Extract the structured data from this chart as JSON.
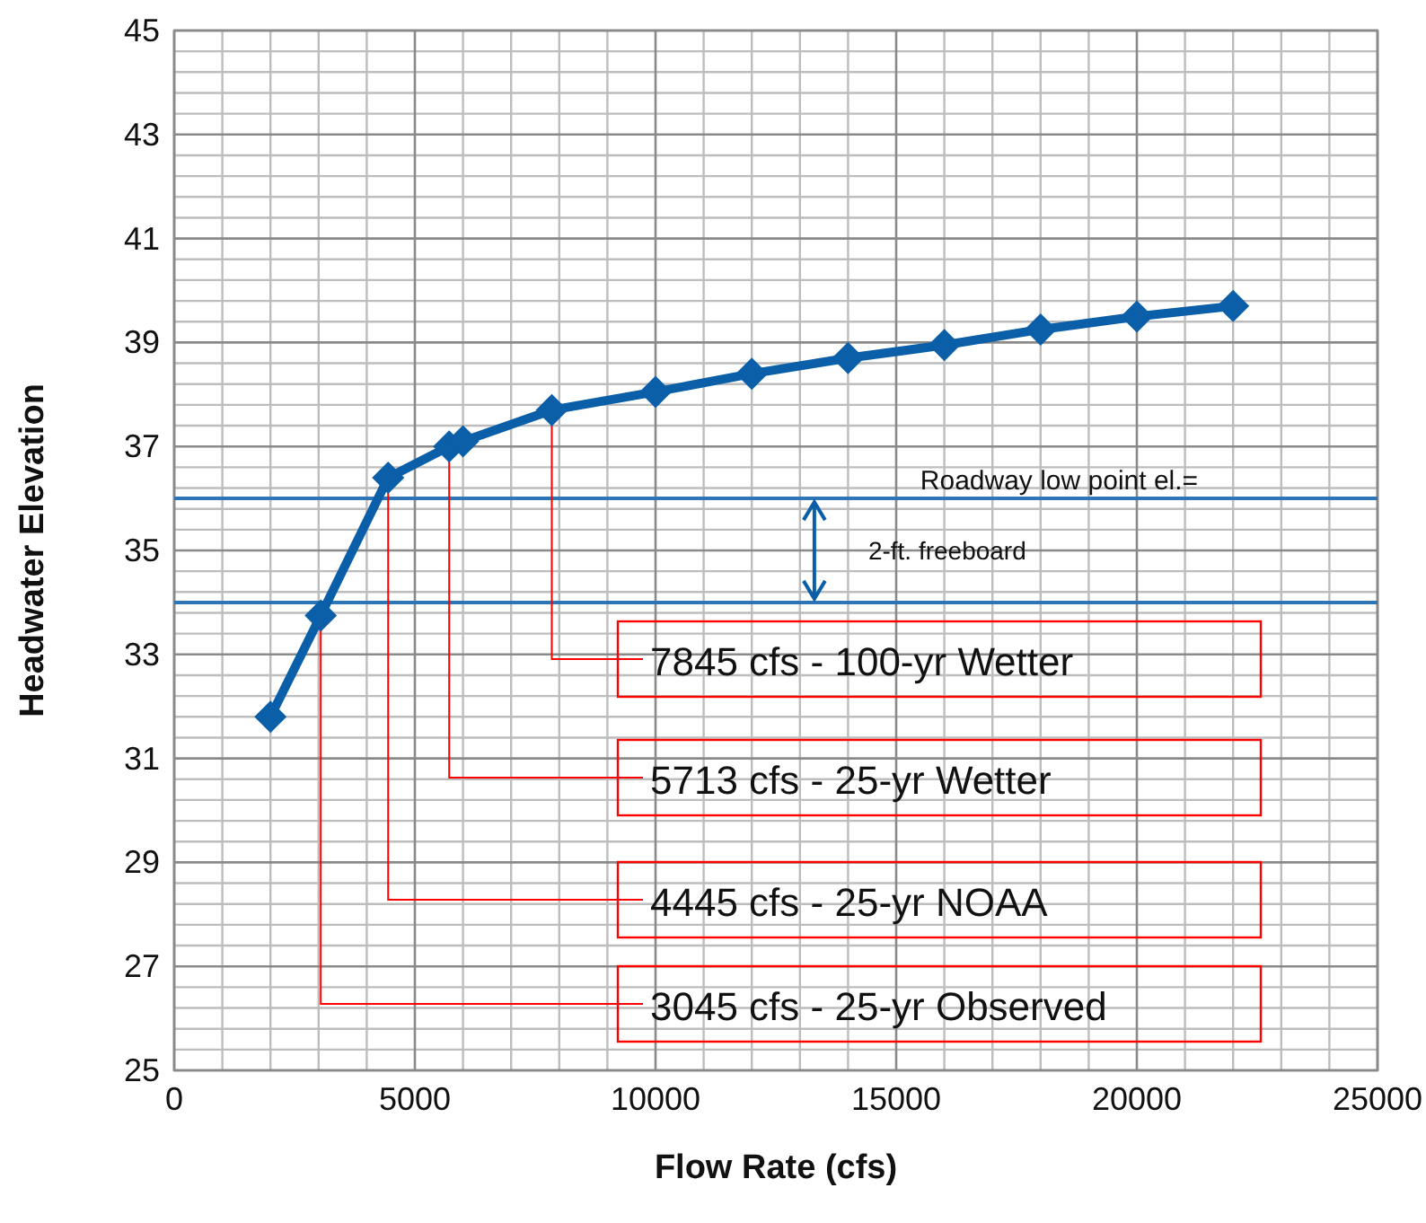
{
  "chart_data": {
    "type": "line",
    "xlabel": "Flow Rate (cfs)",
    "ylabel": "Headwater Elevation",
    "x": [
      2000,
      3045,
      4445,
      5713,
      6000,
      7845,
      10000,
      12000,
      14000,
      16000,
      18000,
      20000,
      22000
    ],
    "series": [
      {
        "color": "#0a5fa8",
        "values": [
          31.8,
          33.75,
          36.4,
          37.0,
          37.1,
          37.7,
          38.05,
          38.4,
          38.7,
          38.95,
          39.25,
          39.5,
          39.7
        ]
      }
    ],
    "xlim": [
      0,
      25000
    ],
    "xticks": [
      0,
      5000,
      10000,
      15000,
      20000,
      25000
    ],
    "ylim": [
      25,
      45
    ],
    "yticks": [
      25,
      27,
      29,
      31,
      33,
      35,
      37,
      39,
      41,
      43,
      45
    ],
    "grid": true,
    "marker": "diamond",
    "line_style": "solid",
    "ref_lines": [
      {
        "axis": "y",
        "value": 36,
        "label": "Roadway low point el.=",
        "color": "#2e75b6"
      },
      {
        "axis": "y",
        "value": 34,
        "label": null,
        "color": "#2e75b6"
      }
    ],
    "annotations": [
      "2-ft. freeboard",
      {
        "text": "7845 cfs - 100-yr Wetter",
        "x": 7845,
        "y": 37.7
      },
      {
        "text": "5713 cfs - 25-yr Wetter",
        "x": 5713,
        "y": 37.0
      },
      {
        "text": "4445 cfs - 25-yr NOAA",
        "x": 4445,
        "y": 36.4
      },
      {
        "text": "3045 cfs - 25-yr Observed",
        "x": 3045,
        "y": 33.75
      }
    ]
  }
}
